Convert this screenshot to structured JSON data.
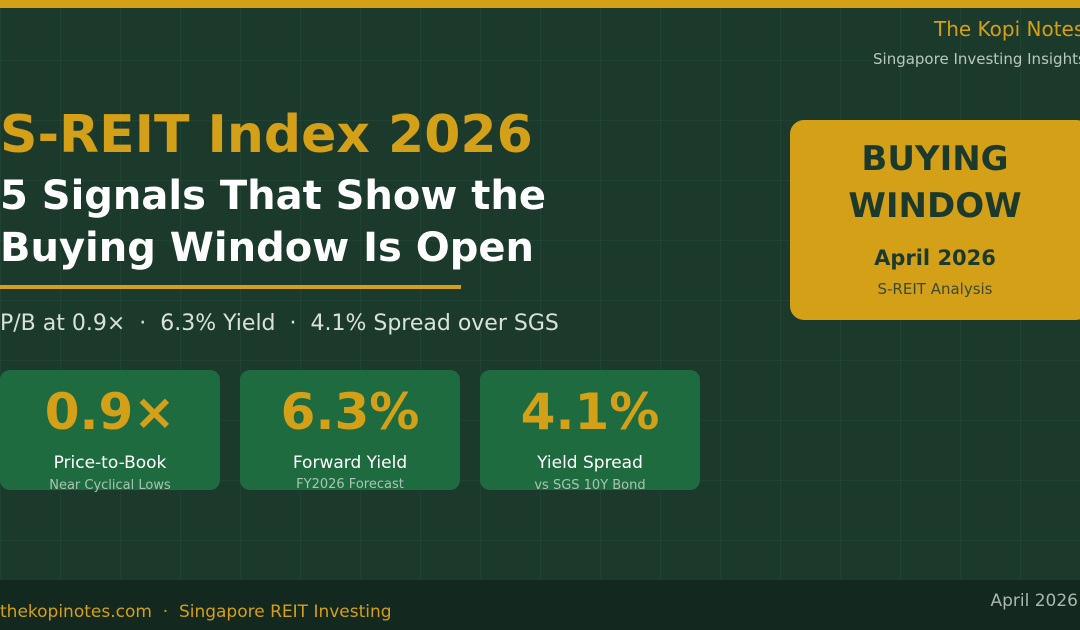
{
  "header": {
    "brand": "The Kopi Notes",
    "tagline": "Singapore Investing Insights"
  },
  "title": "S-REIT Index 2026",
  "headline": [
    "5 Signals That Show the",
    "Buying Window Is Open"
  ],
  "summary": "P/B at 0.9×  ·  6.3% Yield  ·  4.1% Spread over SGS",
  "stats": [
    {
      "value": "0.9×",
      "label": "Price-to-Book",
      "note": "Near Cyclical Lows"
    },
    {
      "value": "6.3%",
      "label": "Forward Yield",
      "note": "FY2026 Forecast"
    },
    {
      "value": "4.1%",
      "label": "Yield Spread",
      "note": "vs SGS 10Y Bond"
    }
  ],
  "badge": {
    "lines": [
      "BUYING",
      "WINDOW"
    ],
    "date": "April 2026",
    "subtitle": "S-REIT Analysis"
  },
  "footer": {
    "site": "thekopinotes.com  ·  Singapore REIT Investing",
    "date": "April 2026"
  }
}
